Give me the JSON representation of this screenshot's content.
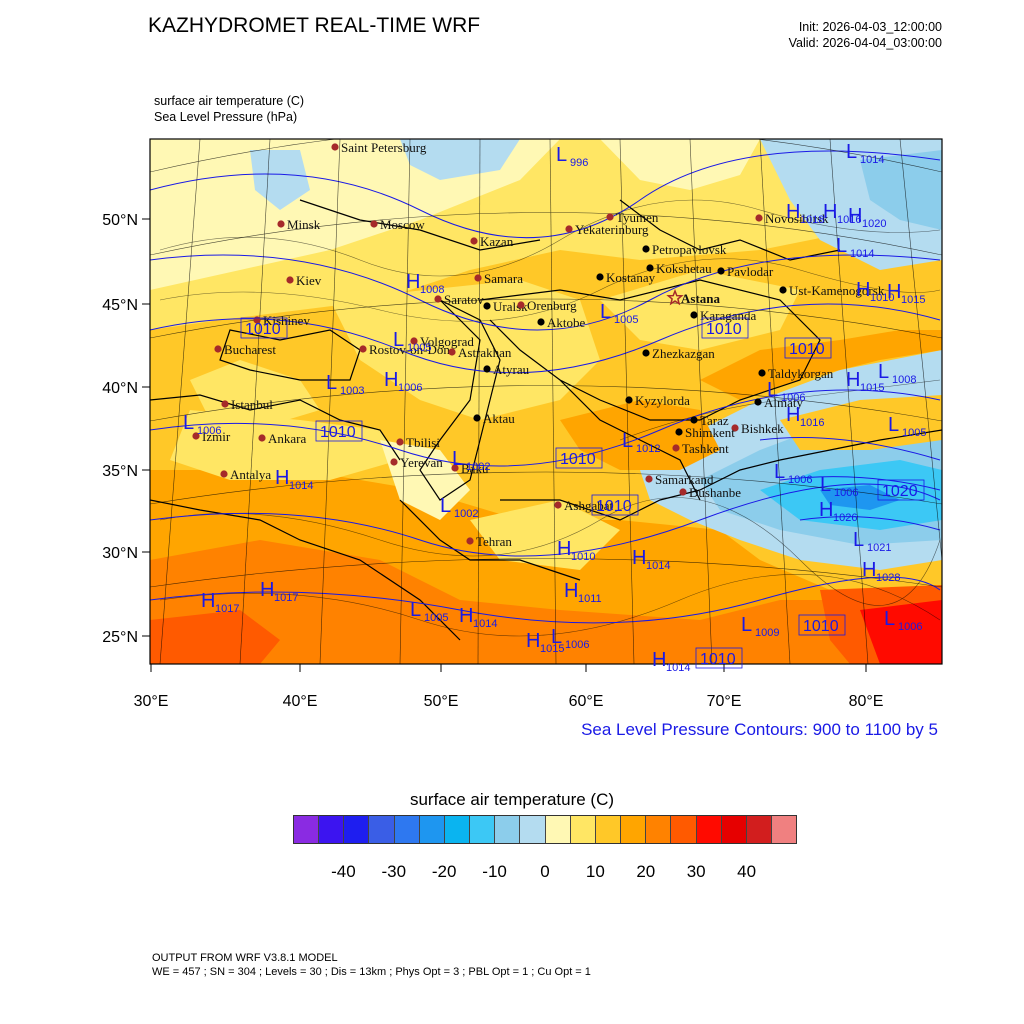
{
  "header": {
    "title": "KAZHYDROMET REAL-TIME WRF",
    "init": "Init: 2026-04-03_12:00:00",
    "valid": "Valid: 2026-04-04_03:00:00"
  },
  "fields": {
    "temperature": "surface air temperature   (C)",
    "pressure": "Sea Level Pressure   (hPa)"
  },
  "axes": {
    "lat_labels": [
      "50°N",
      "45°N",
      "40°N",
      "35°N",
      "30°N",
      "25°N"
    ],
    "lon_labels": [
      "30°E",
      "40°E",
      "50°E",
      "60°E",
      "70°E",
      "80°E"
    ]
  },
  "contour_note": "Sea Level Pressure Contours: 900 to 1100 by 5",
  "colorbar": {
    "title": "surface air temperature  (C)",
    "labels": [
      "-40",
      "-30",
      "-20",
      "-10",
      "0",
      "10",
      "20",
      "30",
      "40"
    ],
    "colors": [
      "#8a2be2",
      "#3c14f0",
      "#1e1ef0",
      "#3a5ee6",
      "#2e78f0",
      "#1e96f0",
      "#0ab4f0",
      "#3cc8f5",
      "#8ccdeb",
      "#b4dcf0",
      "#fff8b4",
      "#ffe664",
      "#ffc828",
      "#ffa500",
      "#ff8200",
      "#ff5a00",
      "#ff0a00",
      "#e60000",
      "#d21e1e",
      "#f08080"
    ]
  },
  "cities": [
    {
      "name": "Saint Petersburg",
      "style": "red"
    },
    {
      "name": "Minsk",
      "style": "red"
    },
    {
      "name": "Moscow",
      "style": "red"
    },
    {
      "name": "Kazan",
      "style": "red"
    },
    {
      "name": "Tyumen",
      "style": "red"
    },
    {
      "name": "Yekaterinburg",
      "style": "red"
    },
    {
      "name": "Novosibirsk",
      "style": "red"
    },
    {
      "name": "Petropavlovsk",
      "style": "black"
    },
    {
      "name": "Kostanay",
      "style": "black"
    },
    {
      "name": "Kokshetau",
      "style": "black"
    },
    {
      "name": "Pavlodar",
      "style": "black"
    },
    {
      "name": "Kiev",
      "style": "red"
    },
    {
      "name": "Samara",
      "style": "red"
    },
    {
      "name": "Saratov",
      "style": "red"
    },
    {
      "name": "Uralsk",
      "style": "black"
    },
    {
      "name": "Orenburg",
      "style": "red"
    },
    {
      "name": "Astana",
      "style": "star"
    },
    {
      "name": "Ust-Kamenogorsk",
      "style": "black"
    },
    {
      "name": "Aktobe",
      "style": "black"
    },
    {
      "name": "Karaganda",
      "style": "black"
    },
    {
      "name": "Kishinev",
      "style": "red"
    },
    {
      "name": "Volgograd",
      "style": "red"
    },
    {
      "name": "Bucharest",
      "style": "red"
    },
    {
      "name": "Rostov-on-Don",
      "style": "red"
    },
    {
      "name": "Astrakhan",
      "style": "red"
    },
    {
      "name": "Zhezkazgan",
      "style": "black"
    },
    {
      "name": "Atyrau",
      "style": "black"
    },
    {
      "name": "Taldykorgan",
      "style": "black"
    },
    {
      "name": "Istanbul",
      "style": "red"
    },
    {
      "name": "Almaty",
      "style": "black"
    },
    {
      "name": "Kyzylorda",
      "style": "black"
    },
    {
      "name": "Taraz",
      "style": "black"
    },
    {
      "name": "Bishkek",
      "style": "red"
    },
    {
      "name": "Aktau",
      "style": "black"
    },
    {
      "name": "Izmir",
      "style": "red"
    },
    {
      "name": "Ankara",
      "style": "red"
    },
    {
      "name": "Tbilisi",
      "style": "red"
    },
    {
      "name": "Shimkent",
      "style": "black"
    },
    {
      "name": "Tashkent",
      "style": "red"
    },
    {
      "name": "Yerevan",
      "style": "red"
    },
    {
      "name": "Baku",
      "style": "red"
    },
    {
      "name": "Antalya",
      "style": "red"
    },
    {
      "name": "Samarkand",
      "style": "red"
    },
    {
      "name": "Dushanbe",
      "style": "red"
    },
    {
      "name": "Ashgabat",
      "style": "red"
    },
    {
      "name": "Tehran",
      "style": "red"
    }
  ],
  "pressure_labels": [
    {
      "letter": "L",
      "value": "996"
    },
    {
      "letter": "L",
      "value": "1014"
    },
    {
      "letter": "H",
      "value": "1018"
    },
    {
      "letter": "H",
      "value": "1016"
    },
    {
      "letter": "H",
      "value": "1020"
    },
    {
      "letter": "L",
      "value": "1014"
    },
    {
      "letter": "H",
      "value": "1008"
    },
    {
      "letter": "H",
      "value": "1010"
    },
    {
      "letter": "H",
      "value": "1015"
    },
    {
      "letter": "L",
      "value": "1005"
    },
    {
      "letter": "",
      "value": "1010"
    },
    {
      "letter": "",
      "value": "1010"
    },
    {
      "letter": "",
      "value": "1010"
    },
    {
      "letter": "L",
      "value": "1005"
    },
    {
      "letter": "H",
      "value": "1006"
    },
    {
      "letter": "L",
      "value": "1003"
    },
    {
      "letter": "H",
      "value": "1015"
    },
    {
      "letter": "L",
      "value": "1008"
    },
    {
      "letter": "L",
      "value": "1006"
    },
    {
      "letter": "H",
      "value": "1016"
    },
    {
      "letter": "L",
      "value": "1006"
    },
    {
      "letter": "L",
      "value": "1005"
    },
    {
      "letter": "",
      "value": "1010"
    },
    {
      "letter": "L",
      "value": "1002"
    },
    {
      "letter": "",
      "value": "1010"
    },
    {
      "letter": "L",
      "value": "1012"
    },
    {
      "letter": "H",
      "value": "1014"
    },
    {
      "letter": "L",
      "value": "1006"
    },
    {
      "letter": "L",
      "value": "1006"
    },
    {
      "letter": "",
      "value": "1020"
    },
    {
      "letter": "L",
      "value": "1002"
    },
    {
      "letter": "",
      "value": "1010"
    },
    {
      "letter": "H",
      "value": "1026"
    },
    {
      "letter": "L",
      "value": "1021"
    },
    {
      "letter": "H",
      "value": "1010"
    },
    {
      "letter": "H",
      "value": "1014"
    },
    {
      "letter": "H",
      "value": "1028"
    },
    {
      "letter": "H",
      "value": "1017"
    },
    {
      "letter": "H",
      "value": "1017"
    },
    {
      "letter": "H",
      "value": "1011"
    },
    {
      "letter": "L",
      "value": "1005"
    },
    {
      "letter": "H",
      "value": "1014"
    },
    {
      "letter": "L",
      "value": "1009"
    },
    {
      "letter": "",
      "value": "1010"
    },
    {
      "letter": "L",
      "value": "1006"
    },
    {
      "letter": "H",
      "value": "1015"
    },
    {
      "letter": "L",
      "value": "1006"
    },
    {
      "letter": "H",
      "value": "1014"
    },
    {
      "letter": "",
      "value": "1010"
    }
  ],
  "footer": {
    "model": "OUTPUT FROM WRF V3.8.1 MODEL",
    "config": "WE = 457 ; SN = 304 ; Levels = 30 ; Dis = 13km ; Phys Opt = 3 ; PBL Opt = 1 ; Cu Opt = 1"
  }
}
